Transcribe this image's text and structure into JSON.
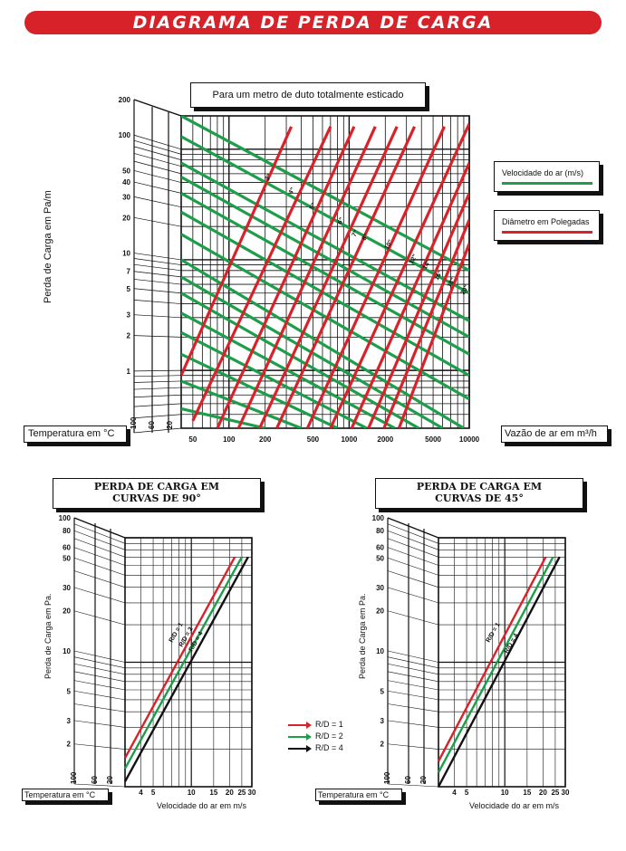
{
  "page": {
    "title": "DIAGRAMA DE PERDA DE CARGA"
  },
  "colors": {
    "red": "#d8222a",
    "green": "#1e9e4a",
    "black": "#111111"
  },
  "main_chart": {
    "header": "Para um metro de duto totalmente esticado",
    "ylabel": "Perda de Carga em Pa/m",
    "xlabel": "Vazão de ar em m³/h",
    "temperature_label": "Temperatura em °C",
    "temperature_ticks": [
      "100",
      "60",
      "20"
    ],
    "legend_velocity": "Velocidade do ar (m/s)",
    "legend_diameter": "Diâmetro em Polegadas",
    "diameter_labels": [
      "3\"",
      "4\"",
      "5\"",
      "6\"",
      "7\"",
      "8\"",
      "10\"",
      "12\"",
      "14\"",
      "16\"",
      "18\"",
      "20\""
    ],
    "velocity_labels": [
      "3",
      "4",
      "5",
      "6",
      "7",
      "8",
      "9",
      "10",
      "12",
      "14",
      "16",
      "18",
      "20",
      "25",
      "30"
    ]
  },
  "chart_data": [
    {
      "type": "line",
      "title": "Para um metro de duto totalmente esticado",
      "xlabel": "Vazão de ar em m³/h",
      "ylabel": "Perda de Carga em Pa/m",
      "x_scale": "log",
      "y_scale": "log",
      "xlim": [
        40,
        10000
      ],
      "ylim": [
        0.3,
        200
      ],
      "x_ticks": [
        "50",
        "100",
        "200",
        "500",
        "1000",
        "2000",
        "5000",
        "10000"
      ],
      "y_ticks": [
        "1",
        "2",
        "3",
        "5",
        "7",
        "10",
        "20",
        "30",
        "40",
        "50",
        "100",
        "200"
      ],
      "grid": true,
      "legend": [
        "Velocidade do ar (m/s)",
        "Diâmetro em Polegadas"
      ],
      "diameter_series": [
        {
          "label": "3\"",
          "points": [
            [
              40,
              0.9
            ],
            [
              330,
              160
            ]
          ]
        },
        {
          "label": "4\"",
          "points": [
            [
              50,
              0.35
            ],
            [
              700,
              160
            ]
          ]
        },
        {
          "label": "5\"",
          "points": [
            [
              80,
              0.3
            ],
            [
              1100,
              160
            ]
          ]
        },
        {
          "label": "6\"",
          "points": [
            [
              120,
              0.3
            ],
            [
              1650,
              160
            ]
          ]
        },
        {
          "label": "7\"",
          "points": [
            [
              180,
              0.3
            ],
            [
              2500,
              160
            ]
          ]
        },
        {
          "label": "8\"",
          "points": [
            [
              250,
              0.3
            ],
            [
              3500,
              160
            ]
          ]
        },
        {
          "label": "10\"",
          "points": [
            [
              450,
              0.3
            ],
            [
              6200,
              160
            ]
          ]
        },
        {
          "label": "12\"",
          "points": [
            [
              700,
              0.3
            ],
            [
              10000,
              170
            ]
          ]
        },
        {
          "label": "14\"",
          "points": [
            [
              1050,
              0.3
            ],
            [
              10000,
              75
            ]
          ]
        },
        {
          "label": "16\"",
          "points": [
            [
              1450,
              0.3
            ],
            [
              10000,
              40
            ]
          ]
        },
        {
          "label": "18\"",
          "points": [
            [
              1950,
              0.3
            ],
            [
              10000,
              23
            ]
          ]
        },
        {
          "label": "20\"",
          "points": [
            [
              2600,
              0.3
            ],
            [
              10000,
              14
            ]
          ]
        }
      ],
      "velocity_series": [
        {
          "label": "3",
          "points": [
            [
              40,
              0.45
            ],
            [
              200,
              0.3
            ]
          ]
        },
        {
          "label": "4",
          "points": [
            [
              40,
              0.8
            ],
            [
              400,
              0.3
            ]
          ]
        },
        {
          "label": "5",
          "points": [
            [
              40,
              1.4
            ],
            [
              800,
              0.3
            ]
          ]
        },
        {
          "label": "6",
          "points": [
            [
              40,
              2.2
            ],
            [
              1400,
              0.3
            ]
          ]
        },
        {
          "label": "7",
          "points": [
            [
              40,
              3.3
            ],
            [
              2400,
              0.3
            ]
          ]
        },
        {
          "label": "8",
          "points": [
            [
              40,
              5.0
            ],
            [
              3800,
              0.3
            ]
          ]
        },
        {
          "label": "9",
          "points": [
            [
              40,
              7.0
            ],
            [
              6000,
              0.3
            ]
          ]
        },
        {
          "label": "10",
          "points": [
            [
              40,
              10
            ],
            [
              9000,
              0.3
            ]
          ]
        },
        {
          "label": "12",
          "points": [
            [
              40,
              17
            ],
            [
              10000,
              0.55
            ]
          ]
        },
        {
          "label": "14",
          "points": [
            [
              40,
              27
            ],
            [
              10000,
              0.9
            ]
          ]
        },
        {
          "label": "16",
          "points": [
            [
              40,
              40
            ],
            [
              10000,
              1.4
            ]
          ]
        },
        {
          "label": "18",
          "points": [
            [
              40,
              56
            ],
            [
              10000,
              2.0
            ]
          ]
        },
        {
          "label": "20",
          "points": [
            [
              40,
              75
            ],
            [
              10000,
              2.8
            ]
          ]
        },
        {
          "label": "25",
          "points": [
            [
              40,
              130
            ],
            [
              10000,
              5.0
            ]
          ]
        },
        {
          "label": "30",
          "points": [
            [
              40,
              200
            ],
            [
              10000,
              8.0
            ]
          ]
        }
      ]
    },
    {
      "type": "line",
      "title": "PERDA DE CARGA EM CURVAS DE 90°",
      "xlabel": "Velocidade do ar em m/s",
      "ylabel": "Perda de Carga em Pa.",
      "temperature_label": "Temperatura em °C",
      "x_scale": "log",
      "y_scale": "log",
      "xlim": [
        3,
        30
      ],
      "ylim": [
        1,
        100
      ],
      "x_ticks": [
        "4",
        "5",
        "10",
        "15",
        "20",
        "25",
        "30"
      ],
      "y_ticks": [
        "2",
        "3",
        "5",
        "10",
        "20",
        "30",
        "50",
        "60",
        "80",
        "100"
      ],
      "series": [
        {
          "name": "R/D = 1",
          "color": "#d8222a",
          "points": [
            [
              3,
              1.7
            ],
            [
              22,
              70
            ]
          ]
        },
        {
          "name": "R/D = 2",
          "color": "#1e9e4a",
          "points": [
            [
              3,
              1.4
            ],
            [
              25,
              70
            ]
          ]
        },
        {
          "name": "R/D = 4",
          "color": "#111111",
          "points": [
            [
              3,
              1.1
            ],
            [
              28,
              70
            ]
          ]
        }
      ]
    },
    {
      "type": "line",
      "title": "PERDA DE CARGA EM CURVAS DE 45°",
      "xlabel": "Velocidade do ar em m/s",
      "ylabel": "Perda de Carga em Pa.",
      "temperature_label": "Temperatura em °C",
      "x_scale": "log",
      "y_scale": "log",
      "xlim": [
        3,
        30
      ],
      "ylim": [
        1,
        100
      ],
      "x_ticks": [
        "4",
        "5",
        "10",
        "15",
        "20",
        "25",
        "30"
      ],
      "y_ticks": [
        "2",
        "3",
        "5",
        "10",
        "20",
        "30",
        "50",
        "60",
        "80",
        "100"
      ],
      "series": [
        {
          "name": "R/D = 1",
          "color": "#d8222a",
          "points": [
            [
              3,
              1.6
            ],
            [
              21,
              70
            ]
          ]
        },
        {
          "name": "R/D = 2",
          "color": "#1e9e4a",
          "points": [
            [
              3,
              1.3
            ],
            [
              24,
              70
            ]
          ]
        },
        {
          "name": "R/D = 4",
          "color": "#111111",
          "points": [
            [
              3,
              1.0
            ],
            [
              27,
              70
            ]
          ]
        }
      ]
    }
  ],
  "bottom": {
    "chart90": {
      "title_line1": "PERDA DE CARGA EM",
      "title_line2": "CURVAS DE 90°"
    },
    "chart45": {
      "title_line1": "PERDA DE CARGA EM",
      "title_line2": "CURVAS DE 45°"
    },
    "ylabel": "Perda de Carga em Pa.",
    "xlabel": "Velocidade do ar em m/s",
    "temperature_label": "Temperatura em °C",
    "temperature_ticks": [
      "100",
      "60",
      "20"
    ],
    "rd_labels_90": [
      "R/D = 1",
      "R/D = 2",
      "R/D = 4"
    ],
    "rd_labels_45": [
      "R/D = 1",
      "R/D = 4"
    ],
    "legend": [
      "R/D = 1",
      "R/D = 2",
      "R/D = 4"
    ]
  }
}
